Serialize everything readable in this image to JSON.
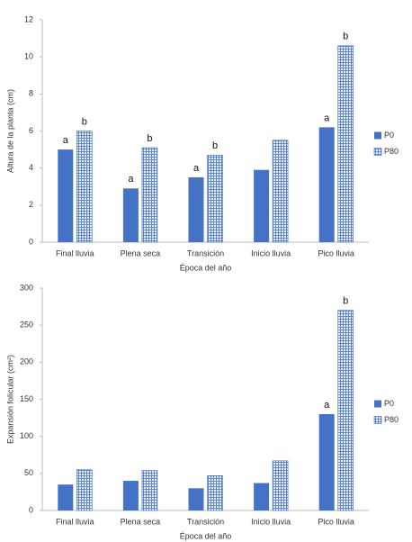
{
  "chart_data": [
    {
      "type": "bar",
      "x_label": "Época del año",
      "y_label": "Altura de la planta (cm)",
      "categories": [
        "Final lluvia",
        "Plena seca",
        "Transición",
        "Inicio lluvia",
        "Pico lluvia"
      ],
      "series": [
        {
          "name": "P0",
          "color": "#4472c4",
          "pattern": "solid",
          "values": [
            5.0,
            2.9,
            3.5,
            3.9,
            6.2
          ],
          "letters": [
            "a",
            "a",
            "a",
            null,
            "a"
          ]
        },
        {
          "name": "P80",
          "color": "#4472c4",
          "pattern": "grid",
          "values": [
            6.0,
            5.1,
            4.7,
            5.5,
            10.6
          ],
          "letters": [
            "b",
            "b",
            "b",
            null,
            "b"
          ]
        }
      ],
      "ylim": [
        0,
        12
      ],
      "yticks": [
        0,
        2,
        4,
        6,
        8,
        10,
        12
      ],
      "legend": "right"
    },
    {
      "type": "bar",
      "x_label": "Época del año",
      "y_label": "Expansión folicular (cm²)",
      "categories": [
        "Final lluvia",
        "Plena seca",
        "Transición",
        "Inicio lluvia",
        "Pico lluvia"
      ],
      "series": [
        {
          "name": "P0",
          "color": "#4472c4",
          "pattern": "solid",
          "values": [
            35,
            40,
            30,
            37,
            130
          ],
          "letters": [
            null,
            null,
            null,
            null,
            "a"
          ]
        },
        {
          "name": "P80",
          "color": "#4472c4",
          "pattern": "grid",
          "values": [
            55,
            54,
            47,
            67,
            270
          ],
          "letters": [
            null,
            null,
            null,
            null,
            "b"
          ]
        }
      ],
      "ylim": [
        0,
        300
      ],
      "yticks": [
        0,
        50,
        100,
        150,
        200,
        250,
        300
      ],
      "legend": "right"
    }
  ]
}
